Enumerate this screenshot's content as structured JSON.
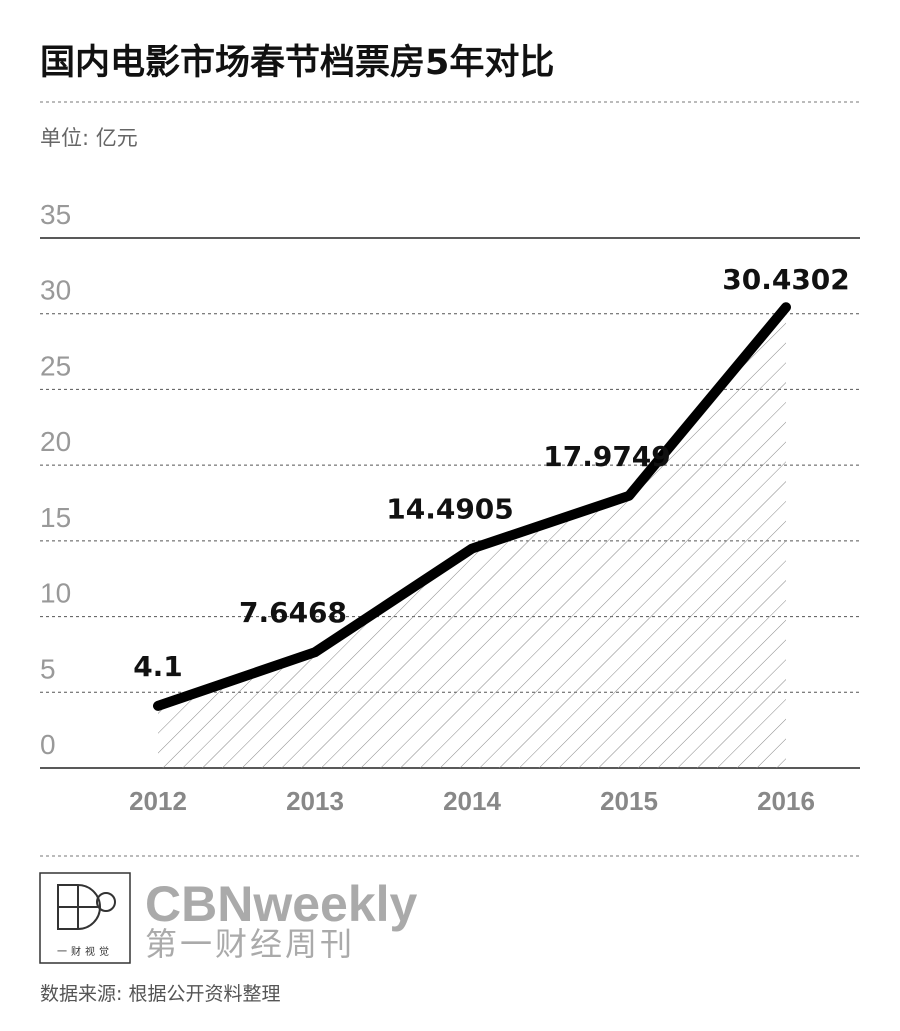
{
  "chart_data": {
    "type": "line",
    "title": "国内电影市场春节档票房5年对比",
    "unit": "单位: 亿元",
    "categories": [
      "2012",
      "2013",
      "2014",
      "2015",
      "2016"
    ],
    "values": [
      4.1,
      7.6468,
      14.4905,
      17.9749,
      30.4302
    ],
    "color": "#000000",
    "ylim": [
      0,
      35
    ],
    "yticks": [
      0,
      5,
      10,
      15,
      20,
      25,
      30,
      35
    ],
    "grid": true,
    "source": "数据来源: 根据公开资料整理"
  },
  "brand": {
    "name": "CBNweekly",
    "subtitle": "第一财经周刊",
    "logo_caption": "一财视觉"
  }
}
